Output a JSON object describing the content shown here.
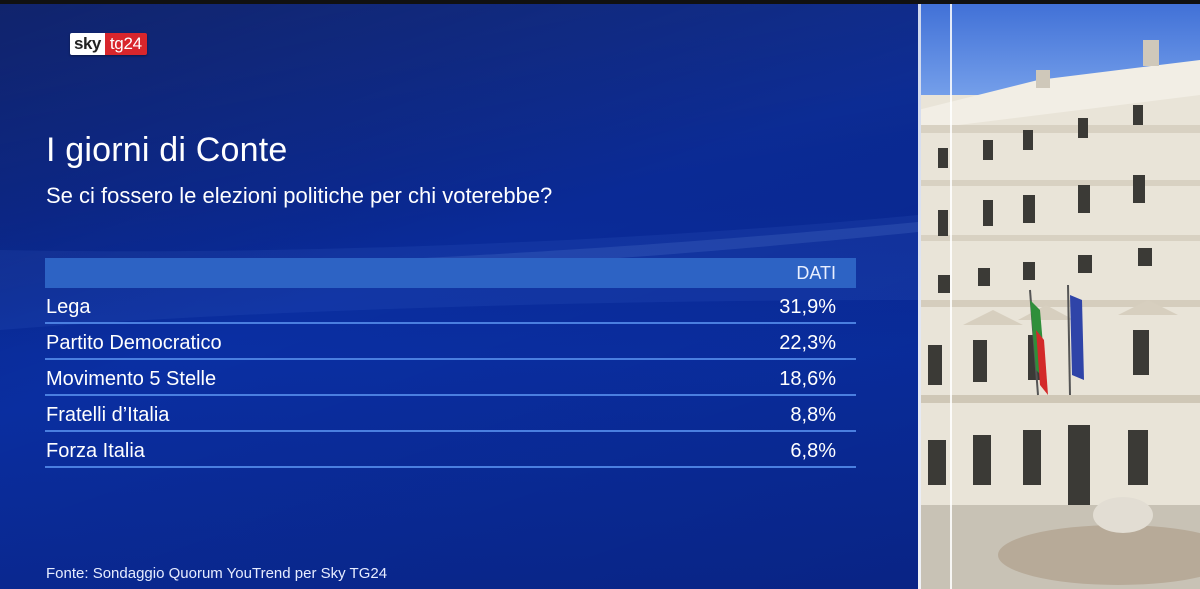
{
  "logo": {
    "sky": "sky",
    "tg": "tg24"
  },
  "title": "I giorni di Conte",
  "subtitle": "Se ci fossero le elezioni politiche per chi voterebbe?",
  "table": {
    "header": "DATI",
    "rows": [
      {
        "party": "Lega",
        "value": "31,9%"
      },
      {
        "party": "Partito Democratico",
        "value": "22,3%"
      },
      {
        "party": "Movimento 5 Stelle",
        "value": "18,6%"
      },
      {
        "party": "Fratelli d’Italia",
        "value": "8,8%"
      },
      {
        "party": "Forza Italia",
        "value": "6,8%"
      }
    ]
  },
  "source": "Fonte: Sondaggio Quorum YouTrend per Sky TG24",
  "colors": {
    "panel_blue": "#0a2a96",
    "header_blue": "#2d63c4",
    "row_line": "#4a7fe0",
    "logo_red": "#d8262c"
  }
}
